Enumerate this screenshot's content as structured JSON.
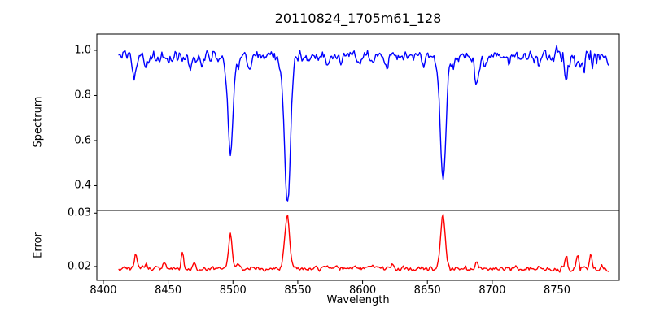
{
  "chart_data": {
    "type": "line",
    "title": "20110824_1705m61_128",
    "grid": false,
    "legend": null,
    "x": {
      "label": "Wavelength",
      "start": 8412,
      "end": 8790,
      "points": 480,
      "lim": [
        8395,
        8798
      ],
      "ticks": {
        "values": [
          8400,
          8450,
          8500,
          8550,
          8600,
          8650,
          8700,
          8750
        ],
        "labels": [
          "8400",
          "8450",
          "8500",
          "8550",
          "8600",
          "8650",
          "8700",
          "8750"
        ]
      }
    },
    "panels": [
      {
        "id": "spectrum",
        "ylabel": "Spectrum",
        "color": "#0000ff",
        "ylim": [
          0.29,
          1.072
        ],
        "yticks": {
          "values": [
            0.4,
            0.6,
            0.8,
            1.0
          ],
          "labels": [
            "0.4",
            "0.6",
            "0.8",
            "1.0"
          ]
        },
        "baseline": 0.972,
        "noise": {
          "amp": 0.04,
          "seed": 12345,
          "boosts": [
            {
              "from": 8748,
              "to": 8790,
              "mult": 2.0
            }
          ]
        },
        "features": [
          {
            "c": 8424.0,
            "a": -0.085,
            "s": 1.3
          },
          {
            "c": 8433.0,
            "a": -0.05,
            "s": 1.1
          },
          {
            "c": 8443.0,
            "a": -0.028,
            "s": 1.0
          },
          {
            "c": 8449.0,
            "a": -0.04,
            "s": 1.1
          },
          {
            "c": 8467.0,
            "a": -0.075,
            "s": 1.3
          },
          {
            "c": 8476.0,
            "a": -0.045,
            "s": 1.1
          },
          {
            "c": 8498.0,
            "a": -0.435,
            "s": 1.9
          },
          {
            "c": 8504.0,
            "a": -0.045,
            "s": 1.1
          },
          {
            "c": 8513.0,
            "a": -0.055,
            "s": 1.2
          },
          {
            "c": 8536.0,
            "a": -0.035,
            "s": 1.1
          },
          {
            "c": 8542.1,
            "a": -0.65,
            "s": 2.3
          },
          {
            "c": 8573.0,
            "a": -0.035,
            "s": 1.0
          },
          {
            "c": 8583.0,
            "a": -0.03,
            "s": 1.0
          },
          {
            "c": 8598.0,
            "a": -0.03,
            "s": 1.0
          },
          {
            "c": 8607.0,
            "a": -0.042,
            "s": 1.1
          },
          {
            "c": 8619.0,
            "a": -0.035,
            "s": 1.0
          },
          {
            "c": 8648.0,
            "a": -0.035,
            "s": 1.0
          },
          {
            "c": 8662.1,
            "a": -0.55,
            "s": 2.2
          },
          {
            "c": 8670.0,
            "a": -0.045,
            "s": 1.1
          },
          {
            "c": 8688.0,
            "a": -0.135,
            "s": 1.5
          },
          {
            "c": 8694.0,
            "a": -0.05,
            "s": 1.0
          },
          {
            "c": 8713.0,
            "a": -0.03,
            "s": 1.0
          },
          {
            "c": 8736.0,
            "a": -0.03,
            "s": 1.0
          },
          {
            "c": 8757.0,
            "a": -0.1,
            "s": 1.2
          },
          {
            "c": 8764.0,
            "a": -0.055,
            "s": 1.0
          },
          {
            "c": 8771.0,
            "a": -0.06,
            "s": 1.0
          },
          {
            "c": 8778.0,
            "a": -0.055,
            "s": 1.0
          }
        ]
      },
      {
        "id": "error",
        "ylabel": "Error",
        "color": "#ff0000",
        "ylim": [
          0.0174,
          0.0305
        ],
        "yticks": {
          "values": [
            0.02,
            0.03
          ],
          "labels": [
            "0.02",
            "0.03"
          ]
        },
        "baseline": 0.0196,
        "noise": {
          "amp": 0.0007,
          "seed": 777,
          "boosts": [
            {
              "from": 8748,
              "to": 8790,
              "mult": 1.6
            }
          ]
        },
        "features": [
          {
            "c": 8425.0,
            "a": 0.003,
            "s": 1.1
          },
          {
            "c": 8433.0,
            "a": 0.0008,
            "s": 0.9
          },
          {
            "c": 8447.0,
            "a": 0.0011,
            "s": 1.1
          },
          {
            "c": 8461.0,
            "a": 0.003,
            "s": 1.0
          },
          {
            "c": 8470.0,
            "a": 0.0013,
            "s": 0.9
          },
          {
            "c": 8498.0,
            "a": 0.0064,
            "s": 1.4
          },
          {
            "c": 8504.0,
            "a": 0.0013,
            "s": 0.9
          },
          {
            "c": 8541.8,
            "a": 0.0099,
            "s": 1.9
          },
          {
            "c": 8607.0,
            "a": 0.0007,
            "s": 1.2
          },
          {
            "c": 8622.0,
            "a": 0.0008,
            "s": 1.5
          },
          {
            "c": 8662.0,
            "a": 0.0103,
            "s": 1.7
          },
          {
            "c": 8688.0,
            "a": 0.0016,
            "s": 0.9
          },
          {
            "c": 8757.0,
            "a": 0.0027,
            "s": 0.9
          },
          {
            "c": 8766.0,
            "a": 0.0026,
            "s": 0.9
          },
          {
            "c": 8776.0,
            "a": 0.0028,
            "s": 1.0
          }
        ]
      }
    ]
  }
}
